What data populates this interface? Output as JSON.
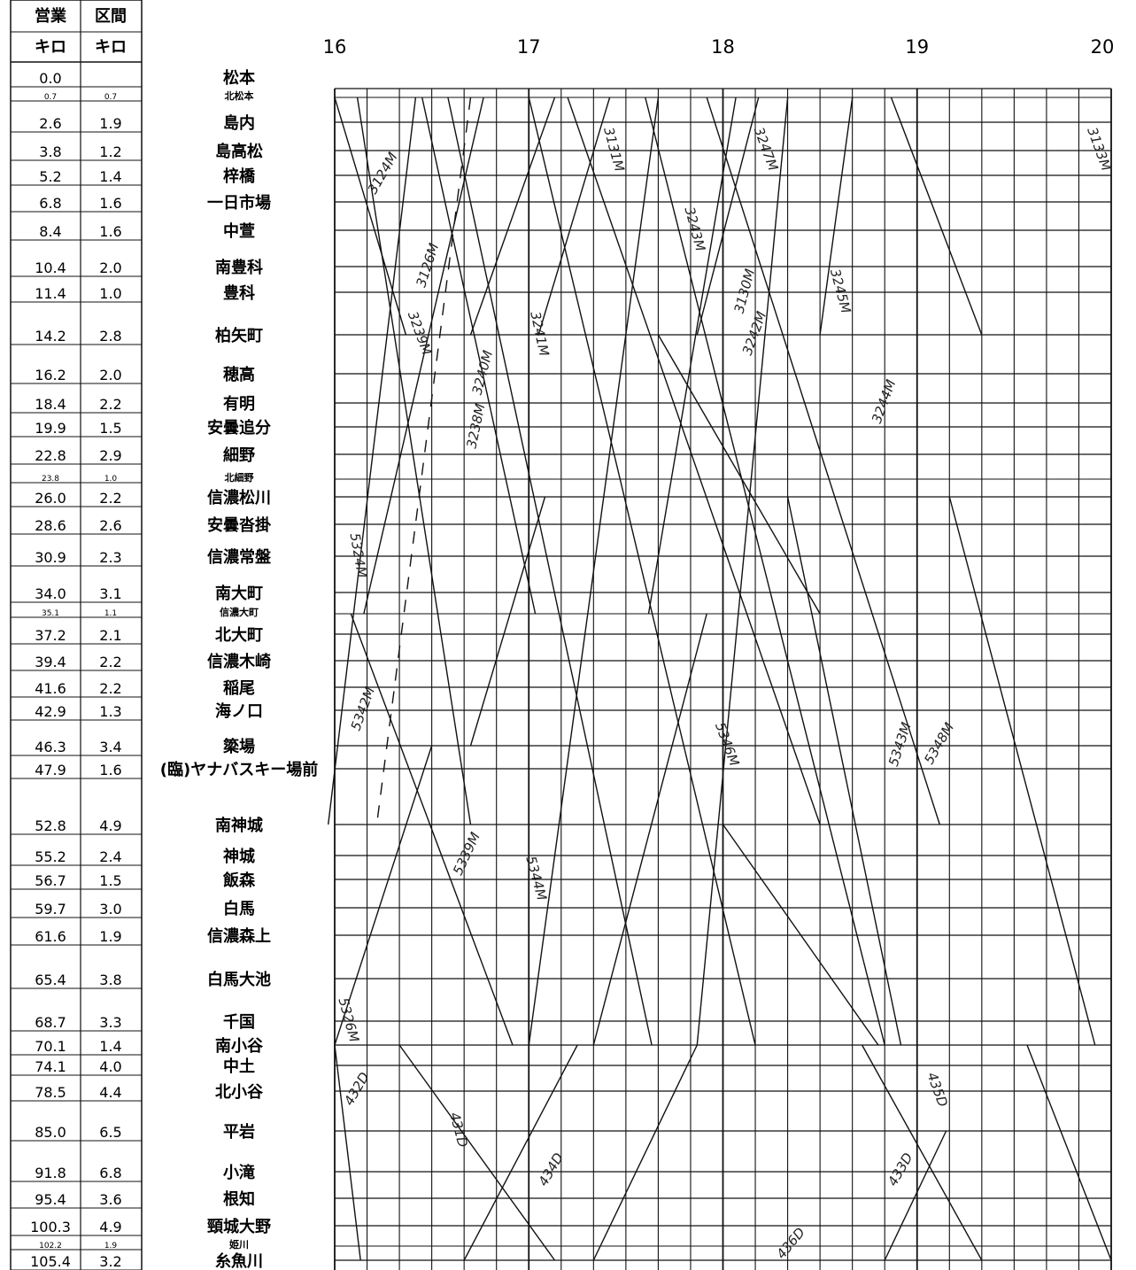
{
  "header": {
    "col_eigyo": [
      "営業",
      "キロ"
    ],
    "col_kukan": [
      "区間",
      "キロ"
    ]
  },
  "hours": [
    "16",
    "17",
    "18",
    "19",
    "20"
  ],
  "stations": [
    {
      "km": "0.0",
      "seg": "",
      "name": "松本"
    },
    {
      "km": "0.7",
      "seg": "0.7",
      "name": "北松本",
      "small": true
    },
    {
      "km": "2.6",
      "seg": "1.9",
      "name": "島内"
    },
    {
      "km": "3.8",
      "seg": "1.2",
      "name": "島高松"
    },
    {
      "km": "5.2",
      "seg": "1.4",
      "name": "梓橋"
    },
    {
      "km": "6.8",
      "seg": "1.6",
      "name": "一日市場"
    },
    {
      "km": "8.4",
      "seg": "1.6",
      "name": "中萱"
    },
    {
      "km": "10.4",
      "seg": "2.0",
      "name": "南豊科"
    },
    {
      "km": "11.4",
      "seg": "1.0",
      "name": "豊科"
    },
    {
      "km": "14.2",
      "seg": "2.8",
      "name": "柏矢町"
    },
    {
      "km": "16.2",
      "seg": "2.0",
      "name": "穂高"
    },
    {
      "km": "18.4",
      "seg": "2.2",
      "name": "有明"
    },
    {
      "km": "19.9",
      "seg": "1.5",
      "name": "安曇追分"
    },
    {
      "km": "22.8",
      "seg": "2.9",
      "name": "細野"
    },
    {
      "km": "23.8",
      "seg": "1.0",
      "name": "北細野",
      "small": true
    },
    {
      "km": "26.0",
      "seg": "2.2",
      "name": "信濃松川"
    },
    {
      "km": "28.6",
      "seg": "2.6",
      "name": "安曇沓掛"
    },
    {
      "km": "30.9",
      "seg": "2.3",
      "name": "信濃常盤"
    },
    {
      "km": "34.0",
      "seg": "3.1",
      "name": "南大町"
    },
    {
      "km": "35.1",
      "seg": "1.1",
      "name": "信濃大町",
      "small": true
    },
    {
      "km": "37.2",
      "seg": "2.1",
      "name": "北大町"
    },
    {
      "km": "39.4",
      "seg": "2.2",
      "name": "信濃木崎"
    },
    {
      "km": "41.6",
      "seg": "2.2",
      "name": "稲尾"
    },
    {
      "km": "42.9",
      "seg": "1.3",
      "name": "海ノ口"
    },
    {
      "km": "46.3",
      "seg": "3.4",
      "name": "簗場"
    },
    {
      "km": "47.9",
      "seg": "1.6",
      "name": "(臨)ヤナバスキー場前"
    },
    {
      "km": "52.8",
      "seg": "4.9",
      "name": "南神城"
    },
    {
      "km": "55.2",
      "seg": "2.4",
      "name": "神城"
    },
    {
      "km": "56.7",
      "seg": "1.5",
      "name": "飯森"
    },
    {
      "km": "59.7",
      "seg": "3.0",
      "name": "白馬"
    },
    {
      "km": "61.6",
      "seg": "1.9",
      "name": "信濃森上"
    },
    {
      "km": "65.4",
      "seg": "3.8",
      "name": "白馬大池"
    },
    {
      "km": "68.7",
      "seg": "3.3",
      "name": "千国"
    },
    {
      "km": "70.1",
      "seg": "1.4",
      "name": "南小谷"
    },
    {
      "km": "74.1",
      "seg": "4.0",
      "name": "中土"
    },
    {
      "km": "78.5",
      "seg": "4.4",
      "name": "北小谷"
    },
    {
      "km": "85.0",
      "seg": "6.5",
      "name": "平岩"
    },
    {
      "km": "91.8",
      "seg": "6.8",
      "name": "小滝"
    },
    {
      "km": "95.4",
      "seg": "3.6",
      "name": "根知"
    },
    {
      "km": "100.3",
      "seg": "4.9",
      "name": "頸城大野"
    },
    {
      "km": "102.2",
      "seg": "1.9",
      "name": "姫川",
      "small": true
    },
    {
      "km": "105.4",
      "seg": "3.2",
      "name": "糸魚川"
    }
  ],
  "train_labels": [
    "3124M",
    "3239M",
    "3126M",
    "3238M",
    "3241M",
    "3240M",
    "3131M",
    "3243M",
    "3130M",
    "3242M",
    "3245M",
    "3244M",
    "3247M",
    "3133M",
    "5324M",
    "5342M",
    "5346M",
    "5343M",
    "5339M",
    "5344M",
    "5348M",
    "5326M",
    "432D",
    "431D",
    "434D",
    "433D",
    "435D",
    "436D"
  ]
}
